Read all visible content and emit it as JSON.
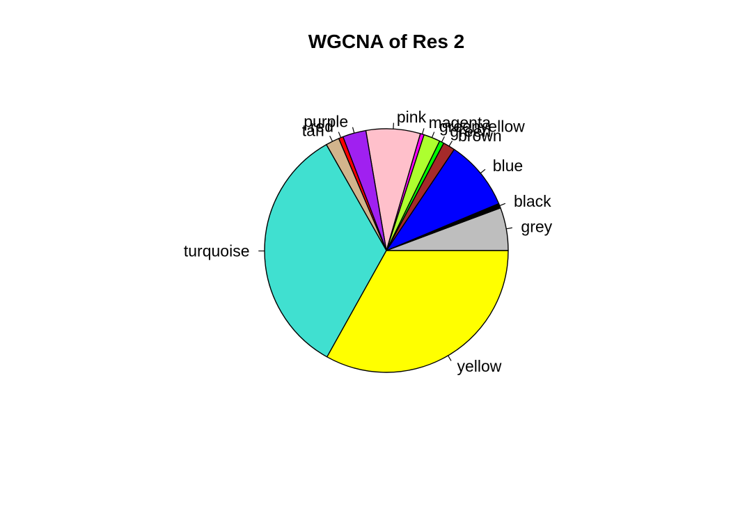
{
  "chart_data": {
    "type": "pie",
    "title": "WGCNA of Res 2",
    "direction": "counterclockwise",
    "start": "3 o'clock",
    "slices": [
      {
        "label": "grey",
        "value": 5.7,
        "color": "#BEBEBE"
      },
      {
        "label": "black",
        "value": 0.6,
        "color": "#000000"
      },
      {
        "label": "blue",
        "value": 9.3,
        "color": "#0000FF"
      },
      {
        "label": "brown",
        "value": 1.6,
        "color": "#A52A2A"
      },
      {
        "label": "green",
        "value": 0.6,
        "color": "#00FF00"
      },
      {
        "label": "greenyellow",
        "value": 2.2,
        "color": "#ADFF2F"
      },
      {
        "label": "magenta",
        "value": 0.5,
        "color": "#FF00FF"
      },
      {
        "label": "pink",
        "value": 7.2,
        "color": "#FFC0CB"
      },
      {
        "label": "purple",
        "value": 3.1,
        "color": "#A020F0"
      },
      {
        "label": "red",
        "value": 0.6,
        "color": "#FF0000"
      },
      {
        "label": "tan",
        "value": 1.8,
        "color": "#D2B48C"
      },
      {
        "label": "turquoise",
        "value": 33.7,
        "color": "#40E0D0"
      },
      {
        "label": "yellow",
        "value": 33.1,
        "color": "#FFFF00"
      }
    ]
  }
}
